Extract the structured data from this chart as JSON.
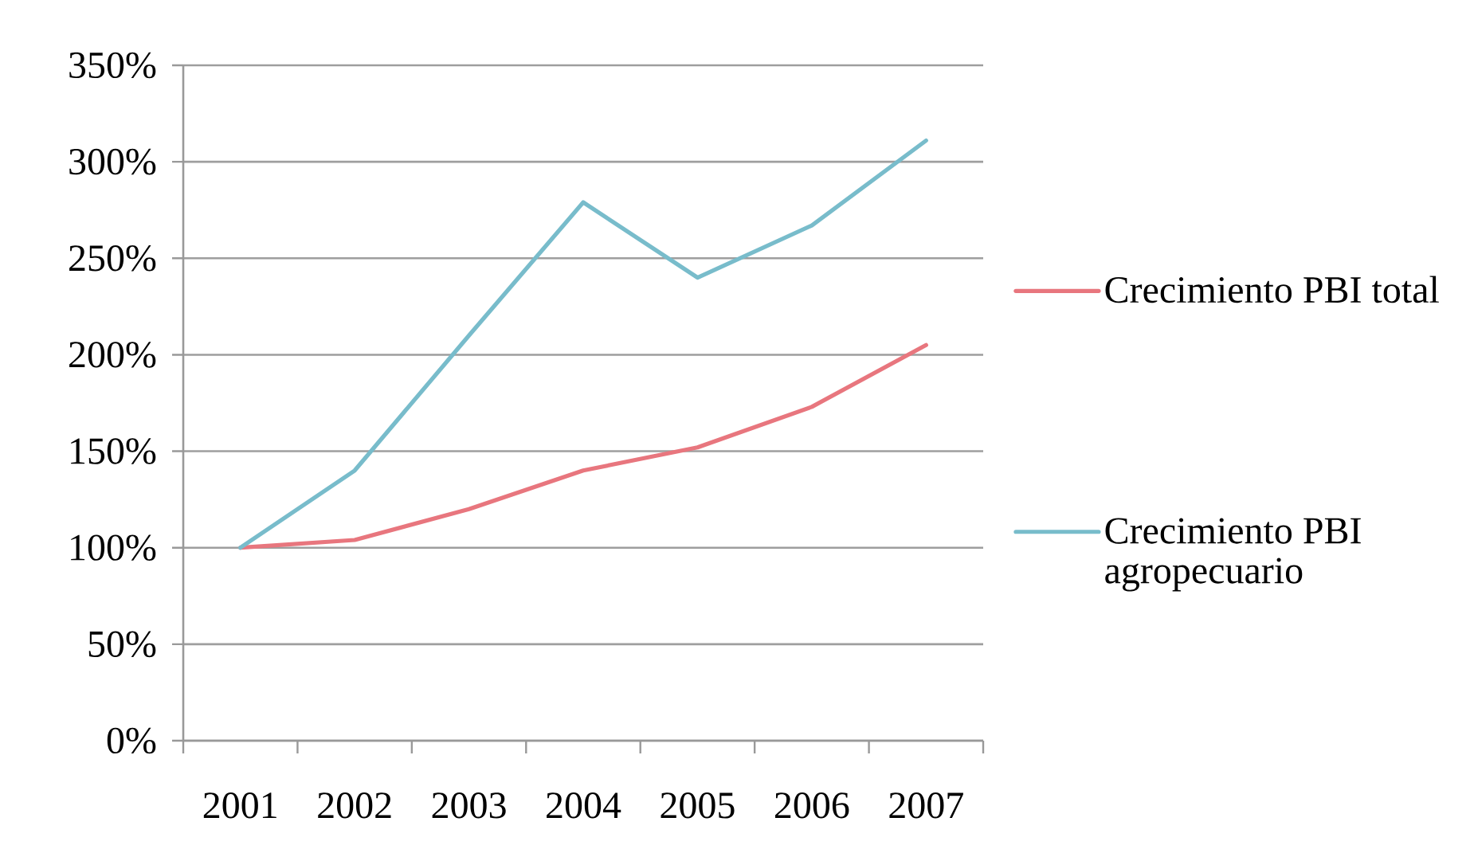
{
  "chart_data": {
    "type": "line",
    "categories": [
      "2001",
      "2002",
      "2003",
      "2004",
      "2005",
      "2006",
      "2007"
    ],
    "series": [
      {
        "name": "Crecimiento PBI total",
        "color": "#e8767e",
        "values": [
          100,
          104,
          120,
          140,
          152,
          173,
          205
        ]
      },
      {
        "name": "Crecimiento PBI agropecuario",
        "color": "#78bccb",
        "values": [
          100,
          140,
          210,
          279,
          240,
          267,
          311
        ]
      }
    ],
    "ylim": [
      0,
      350
    ],
    "yticks": [
      {
        "value": 0,
        "label": "0%"
      },
      {
        "value": 50,
        "label": "50%"
      },
      {
        "value": 100,
        "label": "100%"
      },
      {
        "value": 150,
        "label": "150%"
      },
      {
        "value": 200,
        "label": "200%"
      },
      {
        "value": 250,
        "label": "250%"
      },
      {
        "value": 300,
        "label": "300%"
      },
      {
        "value": 350,
        "label": "350%"
      }
    ],
    "grid": "y",
    "legend": "right"
  }
}
